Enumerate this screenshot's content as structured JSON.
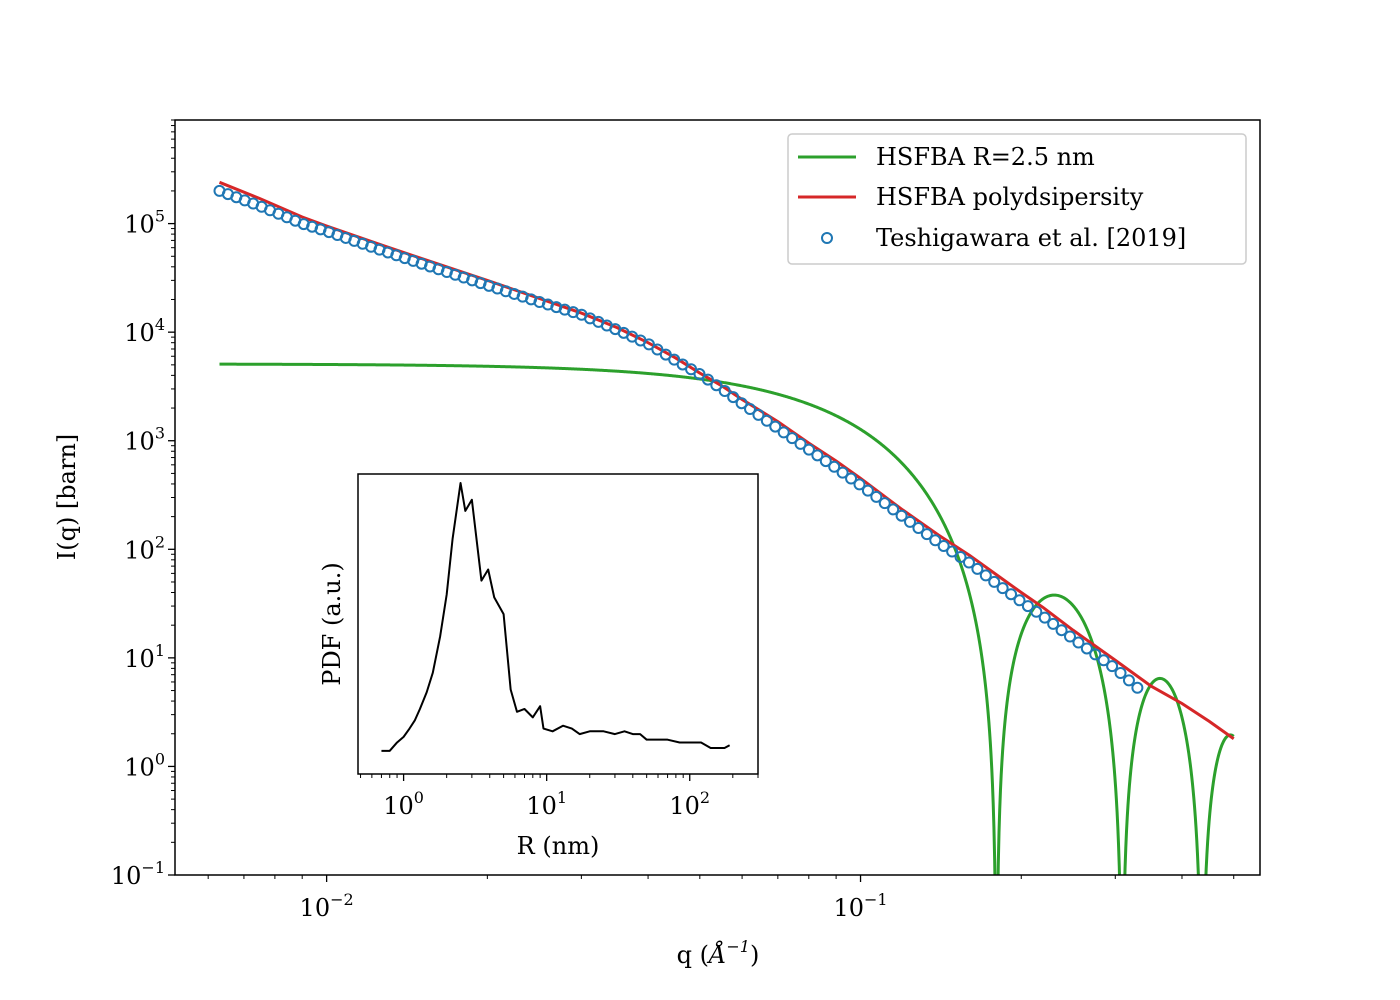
{
  "chart_data": [
    {
      "type": "line",
      "xlabel": "q (Å$^{-1}$)",
      "xlabel_parts": {
        "main": "q (",
        "unit": "Å",
        "exp": "−1",
        "close": ")"
      },
      "ylabel": "I(q) [barn]",
      "x_scale": "log",
      "y_scale": "log",
      "xlim": [
        0.0052,
        0.56
      ],
      "ylim": [
        0.1,
        900000
      ],
      "x_major_ticks": [
        0.01,
        0.1
      ],
      "x_tick_labels": [
        {
          "base": "10",
          "exp": "−2"
        },
        {
          "base": "10",
          "exp": "−1"
        }
      ],
      "y_major_ticks": [
        0.1,
        1,
        10,
        100,
        1000,
        10000,
        100000
      ],
      "y_tick_labels": [
        {
          "base": "10",
          "exp": "−1"
        },
        {
          "base": "10",
          "exp": "0"
        },
        {
          "base": "10",
          "exp": "1"
        },
        {
          "base": "10",
          "exp": "2"
        },
        {
          "base": "10",
          "exp": "3"
        },
        {
          "base": "10",
          "exp": "4"
        },
        {
          "base": "10",
          "exp": "5"
        }
      ],
      "legend_position": "top-right",
      "series": [
        {
          "name": "HSFBA R=2.5 nm",
          "kind": "line",
          "color": "#2ca02c",
          "model": {
            "I0": 5100,
            "R_angstrom": 25,
            "q_min": 0.0063,
            "q_max": 0.5
          }
        },
        {
          "name": "HSFBA polydsipersity",
          "kind": "line",
          "color": "#d62728",
          "points": [
            [
              0.0063,
              240000
            ],
            [
              0.0075,
              170000
            ],
            [
              0.009,
              115000
            ],
            [
              0.01,
              95000
            ],
            [
              0.0125,
              65000
            ],
            [
              0.015,
              48000
            ],
            [
              0.02,
              30000
            ],
            [
              0.025,
              20500
            ],
            [
              0.03,
              15000
            ],
            [
              0.035,
              11000
            ],
            [
              0.04,
              8000
            ],
            [
              0.045,
              5800
            ],
            [
              0.05,
              4200
            ],
            [
              0.055,
              3200
            ],
            [
              0.06,
              2400
            ],
            [
              0.07,
              1500
            ],
            [
              0.08,
              950
            ],
            [
              0.09,
              650
            ],
            [
              0.1,
              450
            ],
            [
              0.12,
              230
            ],
            [
              0.14,
              135
            ],
            [
              0.16,
              88
            ],
            [
              0.18,
              58
            ],
            [
              0.2,
              40
            ],
            [
              0.22,
              29
            ],
            [
              0.25,
              18
            ],
            [
              0.3,
              9.5
            ],
            [
              0.35,
              5.5
            ],
            [
              0.4,
              3.8
            ],
            [
              0.45,
              2.6
            ],
            [
              0.5,
              1.8
            ]
          ]
        },
        {
          "name": "Teshigawara et al. [2019]",
          "kind": "scatter",
          "color": "#1f77b4",
          "trend_points": [
            [
              0.0063,
              200000
            ],
            [
              0.0075,
              145000
            ],
            [
              0.009,
              100000
            ],
            [
              0.01,
              85000
            ],
            [
              0.0125,
              58000
            ],
            [
              0.015,
              43000
            ],
            [
              0.02,
              27000
            ],
            [
              0.025,
              19000
            ],
            [
              0.03,
              14500
            ],
            [
              0.035,
              10500
            ],
            [
              0.04,
              7800
            ],
            [
              0.045,
              5500
            ],
            [
              0.05,
              4100
            ],
            [
              0.055,
              3000
            ],
            [
              0.06,
              2200
            ],
            [
              0.07,
              1300
            ],
            [
              0.08,
              830
            ],
            [
              0.09,
              560
            ],
            [
              0.1,
              390
            ],
            [
              0.12,
              200
            ],
            [
              0.14,
              115
            ],
            [
              0.16,
              75
            ],
            [
              0.18,
              48
            ],
            [
              0.2,
              33
            ],
            [
              0.22,
              24
            ],
            [
              0.25,
              15
            ],
            [
              0.3,
              8
            ],
            [
              0.33,
              5.3
            ]
          ],
          "n_points": 110
        }
      ]
    },
    {
      "type": "line",
      "xlabel": "R (nm)",
      "ylabel": "PDF (a.u.)",
      "x_scale": "log",
      "xlim": [
        0.48,
        300
      ],
      "ylim": [
        0,
        1
      ],
      "x_major_ticks": [
        1,
        10,
        100
      ],
      "x_tick_labels": [
        {
          "base": "10",
          "exp": "0"
        },
        {
          "base": "10",
          "exp": "1"
        },
        {
          "base": "10",
          "exp": "2"
        }
      ],
      "y_ticks": "none",
      "series": [
        {
          "name": "",
          "color": "#000000",
          "points": [
            [
              0.7,
              0.04
            ],
            [
              0.8,
              0.04
            ],
            [
              0.9,
              0.07
            ],
            [
              1.0,
              0.09
            ],
            [
              1.1,
              0.12
            ],
            [
              1.2,
              0.15
            ],
            [
              1.3,
              0.19
            ],
            [
              1.45,
              0.25
            ],
            [
              1.6,
              0.32
            ],
            [
              1.8,
              0.45
            ],
            [
              2.0,
              0.6
            ],
            [
              2.2,
              0.8
            ],
            [
              2.5,
              1.0
            ],
            [
              2.7,
              0.9
            ],
            [
              3.0,
              0.94
            ],
            [
              3.5,
              0.65
            ],
            [
              3.9,
              0.69
            ],
            [
              4.3,
              0.59
            ],
            [
              5.0,
              0.53
            ],
            [
              5.6,
              0.26
            ],
            [
              6.2,
              0.18
            ],
            [
              7.0,
              0.19
            ],
            [
              8.0,
              0.16
            ],
            [
              9.0,
              0.2
            ],
            [
              9.5,
              0.12
            ],
            [
              11,
              0.11
            ],
            [
              13,
              0.13
            ],
            [
              15,
              0.12
            ],
            [
              17,
              0.1
            ],
            [
              20,
              0.11
            ],
            [
              25,
              0.11
            ],
            [
              30,
              0.1
            ],
            [
              35,
              0.11
            ],
            [
              40,
              0.1
            ],
            [
              45,
              0.1
            ],
            [
              50,
              0.08
            ],
            [
              60,
              0.08
            ],
            [
              70,
              0.08
            ],
            [
              85,
              0.07
            ],
            [
              100,
              0.07
            ],
            [
              120,
              0.07
            ],
            [
              140,
              0.05
            ],
            [
              160,
              0.05
            ],
            [
              175,
              0.05
            ],
            [
              190,
              0.06
            ]
          ]
        }
      ]
    }
  ]
}
